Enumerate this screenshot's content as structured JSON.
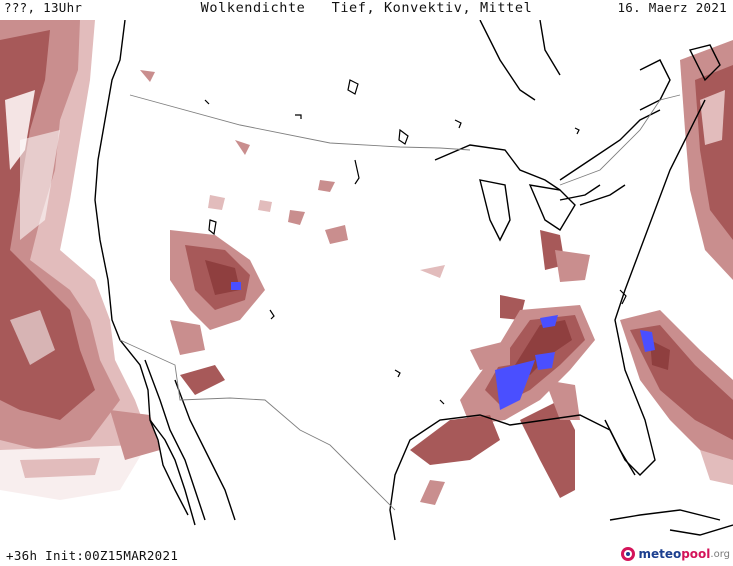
{
  "header": {
    "left_label": "???, 13Uhr",
    "title": "Wolkendichte   Tief, Konvektiv, Mittel",
    "date": "16. Maerz 2021"
  },
  "footer": {
    "run_info": "+36h Init:00Z15MAR2021"
  },
  "logo": {
    "part_a": "meteo",
    "part_b": "pool",
    "part_c": ".org"
  },
  "colors": {
    "cloud_light": "#e2bcbc",
    "cloud_mid": "#c98e8e",
    "cloud_dark": "#a75959",
    "cloud_darkest": "#8f3f3f",
    "convective": "#4a4fff",
    "coast": "#000000",
    "border": "#808080"
  }
}
